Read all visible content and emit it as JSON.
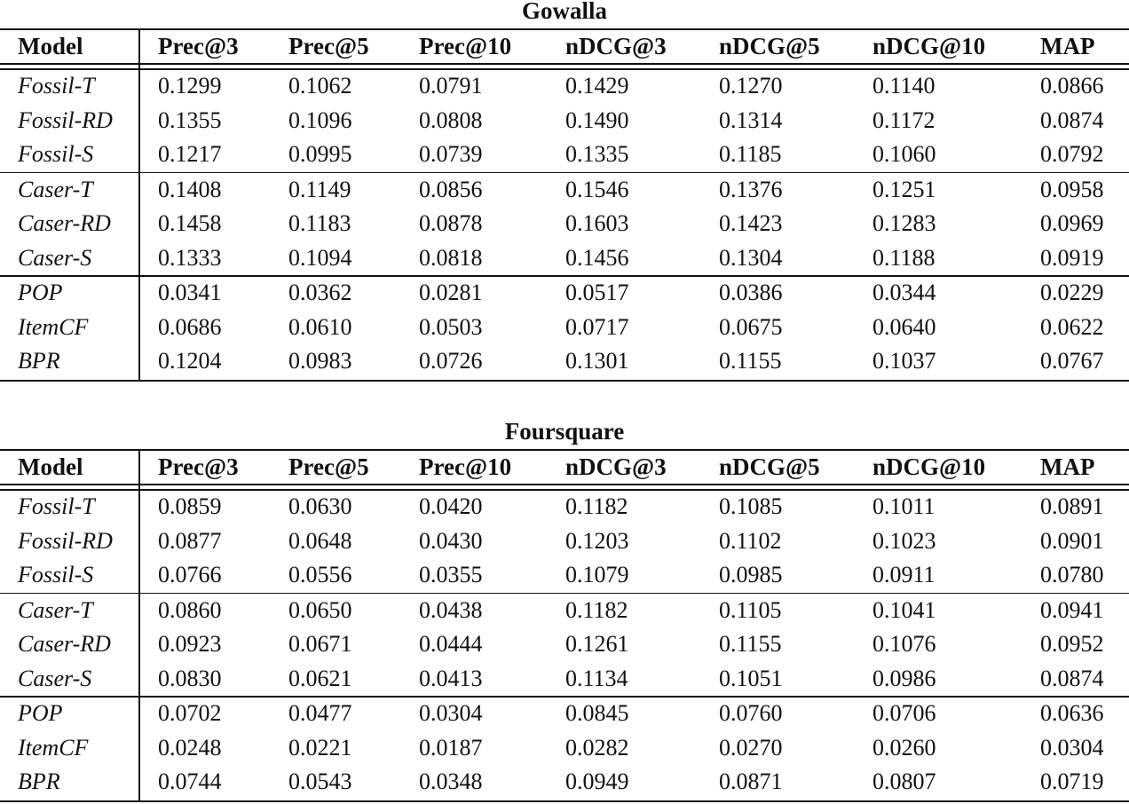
{
  "tables": [
    {
      "caption": "Gowalla",
      "columns": [
        "Model",
        "Prec@3",
        "Prec@5",
        "Prec@10",
        "nDCG@3",
        "nDCG@5",
        "nDCG@10",
        "MAP"
      ],
      "groups": [
        [
          {
            "model": "Fossil-T",
            "values": [
              "0.1299",
              "0.1062",
              "0.0791",
              "0.1429",
              "0.1270",
              "0.1140",
              "0.0866"
            ]
          },
          {
            "model": "Fossil-RD",
            "values": [
              "0.1355",
              "0.1096",
              "0.0808",
              "0.1490",
              "0.1314",
              "0.1172",
              "0.0874"
            ]
          },
          {
            "model": "Fossil-S",
            "values": [
              "0.1217",
              "0.0995",
              "0.0739",
              "0.1335",
              "0.1185",
              "0.1060",
              "0.0792"
            ]
          }
        ],
        [
          {
            "model": "Caser-T",
            "values": [
              "0.1408",
              "0.1149",
              "0.0856",
              "0.1546",
              "0.1376",
              "0.1251",
              "0.0958"
            ]
          },
          {
            "model": "Caser-RD",
            "values": [
              "0.1458",
              "0.1183",
              "0.0878",
              "0.1603",
              "0.1423",
              "0.1283",
              "0.0969"
            ]
          },
          {
            "model": "Caser-S",
            "values": [
              "0.1333",
              "0.1094",
              "0.0818",
              "0.1456",
              "0.1304",
              "0.1188",
              "0.0919"
            ]
          }
        ],
        [
          {
            "model": "POP",
            "values": [
              "0.0341",
              "0.0362",
              "0.0281",
              "0.0517",
              "0.0386",
              "0.0344",
              "0.0229"
            ]
          },
          {
            "model": "ItemCF",
            "values": [
              "0.0686",
              "0.0610",
              "0.0503",
              "0.0717",
              "0.0675",
              "0.0640",
              "0.0622"
            ]
          },
          {
            "model": "BPR",
            "values": [
              "0.1204",
              "0.0983",
              "0.0726",
              "0.1301",
              "0.1155",
              "0.1037",
              "0.0767"
            ]
          }
        ]
      ]
    },
    {
      "caption": "Foursquare",
      "columns": [
        "Model",
        "Prec@3",
        "Prec@5",
        "Prec@10",
        "nDCG@3",
        "nDCG@5",
        "nDCG@10",
        "MAP"
      ],
      "groups": [
        [
          {
            "model": "Fossil-T",
            "values": [
              "0.0859",
              "0.0630",
              "0.0420",
              "0.1182",
              "0.1085",
              "0.1011",
              "0.0891"
            ]
          },
          {
            "model": "Fossil-RD",
            "values": [
              "0.0877",
              "0.0648",
              "0.0430",
              "0.1203",
              "0.1102",
              "0.1023",
              "0.0901"
            ]
          },
          {
            "model": "Fossil-S",
            "values": [
              "0.0766",
              "0.0556",
              "0.0355",
              "0.1079",
              "0.0985",
              "0.0911",
              "0.0780"
            ]
          }
        ],
        [
          {
            "model": "Caser-T",
            "values": [
              "0.0860",
              "0.0650",
              "0.0438",
              "0.1182",
              "0.1105",
              "0.1041",
              "0.0941"
            ]
          },
          {
            "model": "Caser-RD",
            "values": [
              "0.0923",
              "0.0671",
              "0.0444",
              "0.1261",
              "0.1155",
              "0.1076",
              "0.0952"
            ]
          },
          {
            "model": "Caser-S",
            "values": [
              "0.0830",
              "0.0621",
              "0.0413",
              "0.1134",
              "0.1051",
              "0.0986",
              "0.0874"
            ]
          }
        ],
        [
          {
            "model": "POP",
            "values": [
              "0.0702",
              "0.0477",
              "0.0304",
              "0.0845",
              "0.0760",
              "0.0706",
              "0.0636"
            ]
          },
          {
            "model": "ItemCF",
            "values": [
              "0.0248",
              "0.0221",
              "0.0187",
              "0.0282",
              "0.0270",
              "0.0260",
              "0.0304"
            ]
          },
          {
            "model": "BPR",
            "values": [
              "0.0744",
              "0.0543",
              "0.0348",
              "0.0949",
              "0.0871",
              "0.0807",
              "0.0719"
            ]
          }
        ]
      ]
    }
  ]
}
